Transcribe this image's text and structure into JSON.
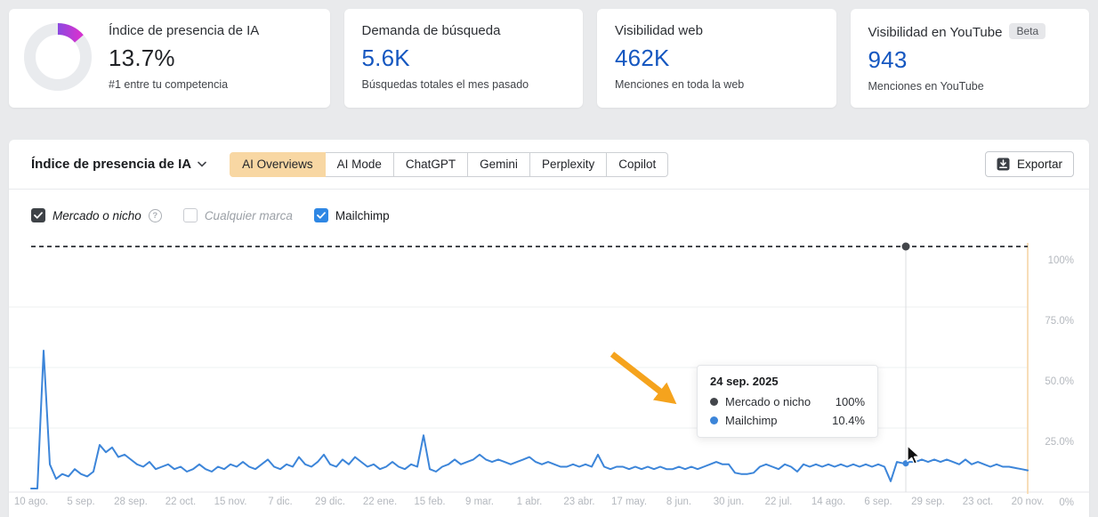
{
  "cards": [
    {
      "title": "Índice de presencia de IA",
      "value": "13.7%",
      "subtitle": "#1 entre tu competencia",
      "donut_percent": 13.7,
      "donut_colors": [
        "#8b49e0",
        "#d333d0"
      ],
      "donut_track": "#e9ebee"
    },
    {
      "title": "Demanda de búsqueda",
      "value": "5.6K",
      "subtitle": "Búsquedas totales el mes pasado"
    },
    {
      "title": "Visibilidad web",
      "value": "462K",
      "subtitle": "Menciones en toda la web"
    },
    {
      "title": "Visibilidad en YouTube",
      "badge": "Beta",
      "value": "943",
      "subtitle": "Menciones en YouTube"
    }
  ],
  "panel": {
    "title": "Índice de presencia de IA",
    "tabs": [
      {
        "label": "AI Overviews",
        "selected": true
      },
      {
        "label": "AI Mode",
        "selected": false
      },
      {
        "label": "ChatGPT",
        "selected": false
      },
      {
        "label": "Gemini",
        "selected": false
      },
      {
        "label": "Perplexity",
        "selected": false
      },
      {
        "label": "Copilot",
        "selected": false
      }
    ],
    "export_label": "Exportar",
    "filters": [
      {
        "label": "Mercado o nicho",
        "checked": true,
        "style": "dark",
        "italic": true,
        "help": true
      },
      {
        "label": "Cualquier marca",
        "checked": false,
        "style": "empty",
        "italic": true,
        "muted": true
      },
      {
        "label": "Mailchimp",
        "checked": true,
        "style": "blue",
        "italic": false
      }
    ],
    "selected_tab_color": "#f8d7a3"
  },
  "tooltip": {
    "date": "24 sep. 2025",
    "rows": [
      {
        "label": "Mercado o nicho",
        "value": "100%",
        "color": "#43464b"
      },
      {
        "label": "Mailchimp",
        "value": "10.4%",
        "color": "#3c85d9"
      }
    ]
  },
  "chart_data": {
    "type": "line",
    "x_tick_labels": [
      "10 ago.",
      "5 sep.",
      "28 sep.",
      "22 oct.",
      "15 nov.",
      "7 dic.",
      "29 dic.",
      "22 ene.",
      "15 feb.",
      "9 mar.",
      "1 abr.",
      "23 abr.",
      "17 may.",
      "8 jun.",
      "30 jun.",
      "22 jul.",
      "14 ago.",
      "6 sep.",
      "29 sep.",
      "23 oct.",
      "20 nov."
    ],
    "y_tick_labels": [
      "100%",
      "75.0%",
      "50.0%",
      "25.0%",
      "0%"
    ],
    "ylim": [
      0,
      100
    ],
    "grid": true,
    "legend_position": "none",
    "series": [
      {
        "name": "Mercado o nicho",
        "type": "dashed-constant",
        "color": "#43464b",
        "value": 100
      },
      {
        "name": "Mailchimp",
        "type": "line",
        "color": "#3c85d9",
        "values": [
          0,
          0,
          57,
          10,
          4,
          6,
          5,
          8,
          6,
          5,
          7,
          18,
          15,
          17,
          13,
          14,
          12,
          10,
          9,
          11,
          8,
          9,
          10,
          8,
          9,
          7,
          8,
          10,
          8,
          7,
          9,
          8,
          10,
          9,
          11,
          9,
          8,
          10,
          12,
          9,
          8,
          10,
          9,
          13,
          10,
          9,
          11,
          14,
          10,
          9,
          12,
          10,
          13,
          11,
          9,
          10,
          8,
          9,
          11,
          9,
          8,
          10,
          9,
          22,
          8,
          7,
          9,
          10,
          12,
          10,
          11,
          12,
          14,
          12,
          11,
          12,
          11,
          10,
          11,
          12,
          13,
          11,
          10,
          11,
          10,
          9,
          9,
          10,
          9,
          10,
          9,
          14,
          9,
          8,
          9,
          9,
          8,
          9,
          8,
          9,
          8,
          9,
          8,
          8,
          9,
          8,
          9,
          8,
          9,
          10,
          11,
          10,
          10,
          6.5,
          6,
          6,
          6.5,
          9,
          10,
          9,
          8,
          10,
          9,
          7,
          10,
          9,
          10,
          9,
          10,
          9,
          10,
          9,
          10,
          9,
          10,
          9,
          10,
          9,
          3,
          11,
          10.4,
          11,
          11,
          12,
          11,
          12,
          11,
          12,
          11,
          10,
          12,
          10,
          11,
          10,
          9,
          10,
          9,
          9,
          8.5,
          8,
          7.5
        ]
      }
    ],
    "hover": {
      "date": "24 sep. 2025",
      "x_frac": 0.8777,
      "market_value": 100,
      "mailchimp_value": 10.4
    },
    "annotation_arrow_color": "#f5a31d",
    "current_period_line_color": "#f7ddb8"
  }
}
